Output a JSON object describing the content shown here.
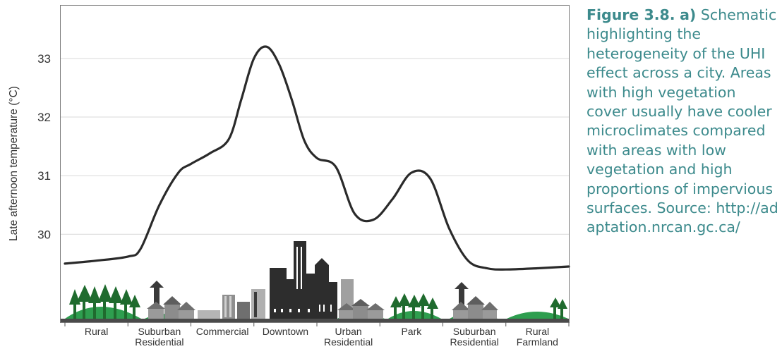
{
  "chart_data": {
    "type": "line",
    "ylabel": "Late afternoon temperature (°C)",
    "xlabel": "",
    "yticks": [
      30,
      31,
      32,
      33
    ],
    "ylim": [
      28.5,
      33.9
    ],
    "grid": true,
    "categories": [
      [
        "Rural"
      ],
      [
        "Suburban",
        "Residential"
      ],
      [
        "Commercial"
      ],
      [
        "Downtown"
      ],
      [
        "Urban",
        "Residential"
      ],
      [
        "Park"
      ],
      [
        "Suburban",
        "Residential"
      ],
      [
        "Rural",
        "Farmland"
      ]
    ],
    "series": [
      {
        "x": [
          0.0,
          0.5,
          1.0,
          1.2,
          1.5,
          1.8,
          2.0,
          2.3,
          2.6,
          2.8,
          3.0,
          3.2,
          3.4,
          3.6,
          3.8,
          4.0,
          4.3,
          4.6,
          4.9,
          5.2,
          5.5,
          5.8,
          6.1,
          6.4,
          6.7,
          7.0,
          7.5,
          8.0
        ],
        "values": [
          29.5,
          29.55,
          29.62,
          29.75,
          30.5,
          31.05,
          31.2,
          31.38,
          31.62,
          32.3,
          33.0,
          33.2,
          32.9,
          32.3,
          31.6,
          31.3,
          31.15,
          30.35,
          30.25,
          30.6,
          31.05,
          30.95,
          30.1,
          29.55,
          29.42,
          29.4,
          29.42,
          29.45
        ]
      }
    ]
  },
  "caption": {
    "figure_label": "Figure 3.8.",
    "letter": "a)",
    "text": "Schematic highlighting the heterogeneity of the UHI effect across a city. Areas with high vegetation cover usually have cooler microclimates compared with areas with low vegetation and high proportions of impervious surfaces. Source:",
    "url": "http://adaptation.nrcan.gc.ca/"
  }
}
